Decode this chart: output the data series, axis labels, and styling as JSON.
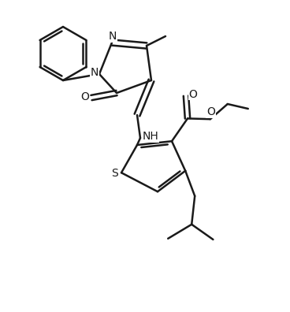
{
  "background_color": "#ffffff",
  "line_color": "#1a1a1a",
  "line_width": 1.8,
  "figsize": [
    3.68,
    3.96
  ],
  "dpi": 100,
  "xlim": [
    0,
    9.2
  ],
  "ylim": [
    0,
    9.9
  ]
}
